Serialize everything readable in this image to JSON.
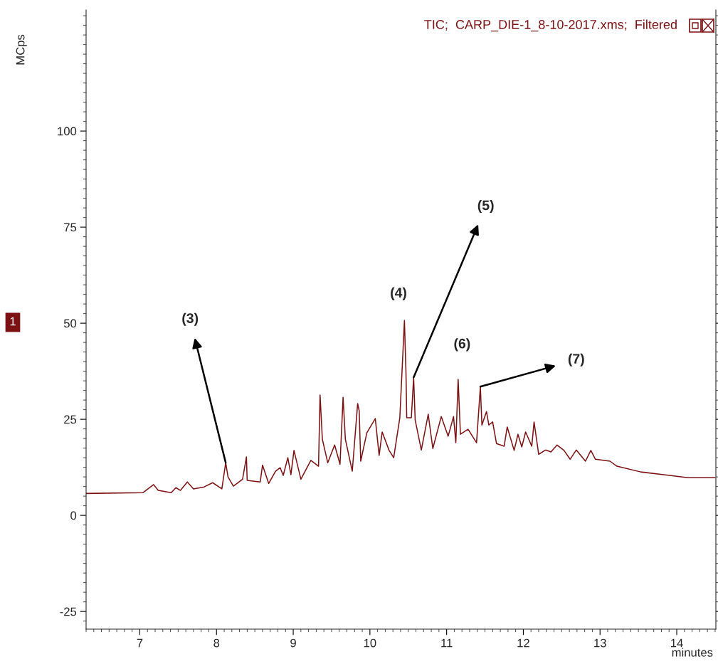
{
  "chart_data": {
    "type": "line",
    "title": "TIC;  CARP_DIE-1_8-10-2017.xms;  Filtered",
    "xlabel": "minutes",
    "ylabel": "MCps",
    "xlim": [
      6.3,
      14.51
    ],
    "ylim": [
      -29.6,
      131.5
    ],
    "xticks": [
      7,
      8,
      9,
      10,
      11,
      12,
      13,
      14
    ],
    "yticks": [
      -25,
      0,
      25,
      50,
      75,
      100
    ],
    "grid": false,
    "legend": false,
    "marker": "none",
    "line_style": "solid",
    "series": [
      {
        "color": "#7b1113",
        "x": [
          6.3,
          7.04,
          7.18,
          7.24,
          7.41,
          7.47,
          7.53,
          7.62,
          7.7,
          7.84,
          7.95,
          8.07,
          8.12,
          8.15,
          8.22,
          8.34,
          8.39,
          8.4,
          8.57,
          8.6,
          8.68,
          8.77,
          8.83,
          8.87,
          8.93,
          8.97,
          9.01,
          9.1,
          9.23,
          9.33,
          9.35,
          9.38,
          9.45,
          9.54,
          9.61,
          9.65,
          9.68,
          9.77,
          9.84,
          9.86,
          9.88,
          9.96,
          10.07,
          10.12,
          10.16,
          10.25,
          10.31,
          10.39,
          10.45,
          10.47,
          10.48,
          10.54,
          10.57,
          10.59,
          10.67,
          10.76,
          10.82,
          10.93,
          11.02,
          11.09,
          11.12,
          11.15,
          11.18,
          11.28,
          11.39,
          11.44,
          11.46,
          11.52,
          11.55,
          11.6,
          11.65,
          11.75,
          11.79,
          11.88,
          11.93,
          11.98,
          12.03,
          12.11,
          12.14,
          12.2,
          12.29,
          12.36,
          12.44,
          12.53,
          12.61,
          12.69,
          12.81,
          12.88,
          12.94,
          13.13,
          13.22,
          13.53,
          13.83,
          14.15,
          14.5
        ],
        "values": [
          5.7,
          5.9,
          8.0,
          6.5,
          5.9,
          7.2,
          6.5,
          8.7,
          6.9,
          7.4,
          8.5,
          6.9,
          13.7,
          10,
          7.6,
          9.4,
          15.2,
          9.1,
          8.7,
          13.1,
          8.3,
          11.5,
          12.4,
          10.4,
          15,
          10.6,
          16.9,
          9.4,
          14.3,
          12.8,
          31.3,
          19.8,
          13.7,
          18.3,
          13.3,
          30.7,
          19.8,
          11.5,
          29.1,
          27.2,
          14.1,
          21.5,
          25.2,
          15.6,
          21.7,
          16.9,
          15,
          25.4,
          50.7,
          37.2,
          25.4,
          25.4,
          35.9,
          24.8,
          17,
          26.3,
          17.4,
          25.7,
          20.6,
          25.7,
          18.9,
          35.4,
          21.1,
          22.4,
          18.9,
          33.5,
          23.5,
          27,
          23.5,
          24.3,
          18.7,
          18,
          23,
          16.9,
          21.1,
          17.8,
          21.7,
          18,
          24.3,
          15.9,
          17,
          16.5,
          18.3,
          16.9,
          14.6,
          17,
          14.1,
          16.9,
          14.6,
          14.1,
          12.8,
          11.3,
          10.6,
          9.8,
          9.8
        ]
      }
    ],
    "annotations": [
      {
        "text": "(3)",
        "x": 8.12,
        "y": 13.7
      },
      {
        "text": "(4)",
        "x": 10.45,
        "y": 50.7
      },
      {
        "text": "(5)",
        "x": 10.57,
        "y": 35.9
      },
      {
        "text": "(6)",
        "x": 11.15,
        "y": 35.4
      },
      {
        "text": "(7)",
        "x": 11.44,
        "y": 33.5
      },
      "1"
    ]
  }
}
